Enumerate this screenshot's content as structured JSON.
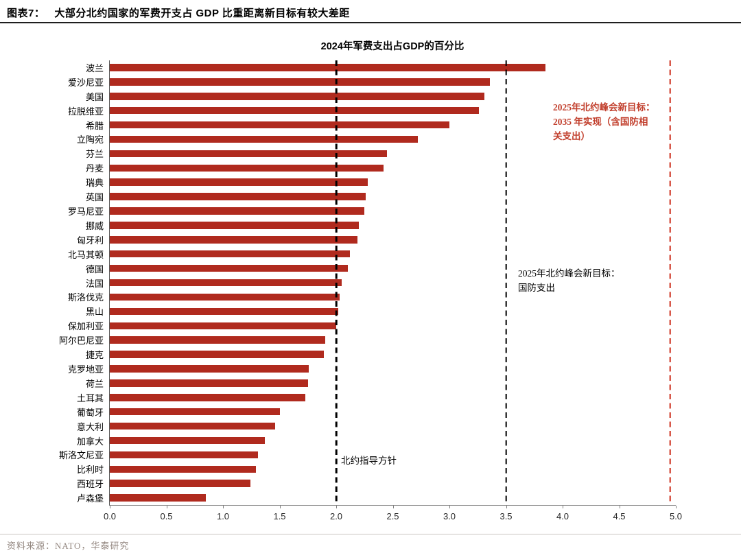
{
  "header": {
    "figure_label": "图表7：",
    "title": "大部分北约国家的军费开支占 GDP 比重距离新目标有较大差距"
  },
  "chart_data": {
    "type": "bar",
    "orientation": "horizontal",
    "title": "2024年军费支出占GDP的百分比",
    "categories": [
      "波兰",
      "爱沙尼亚",
      "美国",
      "拉脱维亚",
      "希腊",
      "立陶宛",
      "芬兰",
      "丹麦",
      "瑞典",
      "英国",
      "罗马尼亚",
      "挪威",
      "匈牙利",
      "北马其顿",
      "德国",
      "法国",
      "斯洛伐克",
      "黑山",
      "保加利亚",
      "阿尔巴尼亚",
      "捷克",
      "克罗地亚",
      "荷兰",
      "土耳其",
      "葡萄牙",
      "意大利",
      "加拿大",
      "斯洛文尼亚",
      "比利时",
      "西班牙",
      "卢森堡"
    ],
    "values": [
      3.85,
      3.36,
      3.31,
      3.26,
      3.0,
      2.72,
      2.45,
      2.42,
      2.28,
      2.26,
      2.25,
      2.2,
      2.19,
      2.12,
      2.1,
      2.05,
      2.03,
      2.02,
      2.0,
      1.9,
      1.89,
      1.76,
      1.75,
      1.73,
      1.5,
      1.46,
      1.37,
      1.31,
      1.29,
      1.24,
      0.85
    ],
    "xlabel": "",
    "ylabel": "",
    "xlim": [
      0,
      5
    ],
    "x_ticks": [
      "0.0",
      "0.5",
      "1.0",
      "1.5",
      "2.0",
      "2.5",
      "3.0",
      "3.5",
      "4.0",
      "4.5",
      "5.0"
    ],
    "grid": false,
    "bar_color": "#b02a1e",
    "reference_lines": [
      {
        "value": 2.0,
        "style": "dashed",
        "color": "#000000",
        "label": "北约指导方针"
      },
      {
        "value": 3.5,
        "style": "dashed",
        "color": "#000000",
        "label": "2025年北约峰会新目标：国防支出"
      },
      {
        "value": 4.95,
        "style": "dashed",
        "color": "#cc2a18",
        "label": "2025年北约峰会新目标：2035 年实现（含国防相关支出）"
      }
    ]
  },
  "annotations": {
    "summit_total_target": "2025年北约峰会新目标：\n2035 年实现（含国防相\n关支出）",
    "summit_defense_target": "2025年北约峰会新目标：\n国防支出",
    "nato_guideline": "北约指导方针"
  },
  "footer": {
    "source": "资料来源：NATO，华泰研究"
  }
}
